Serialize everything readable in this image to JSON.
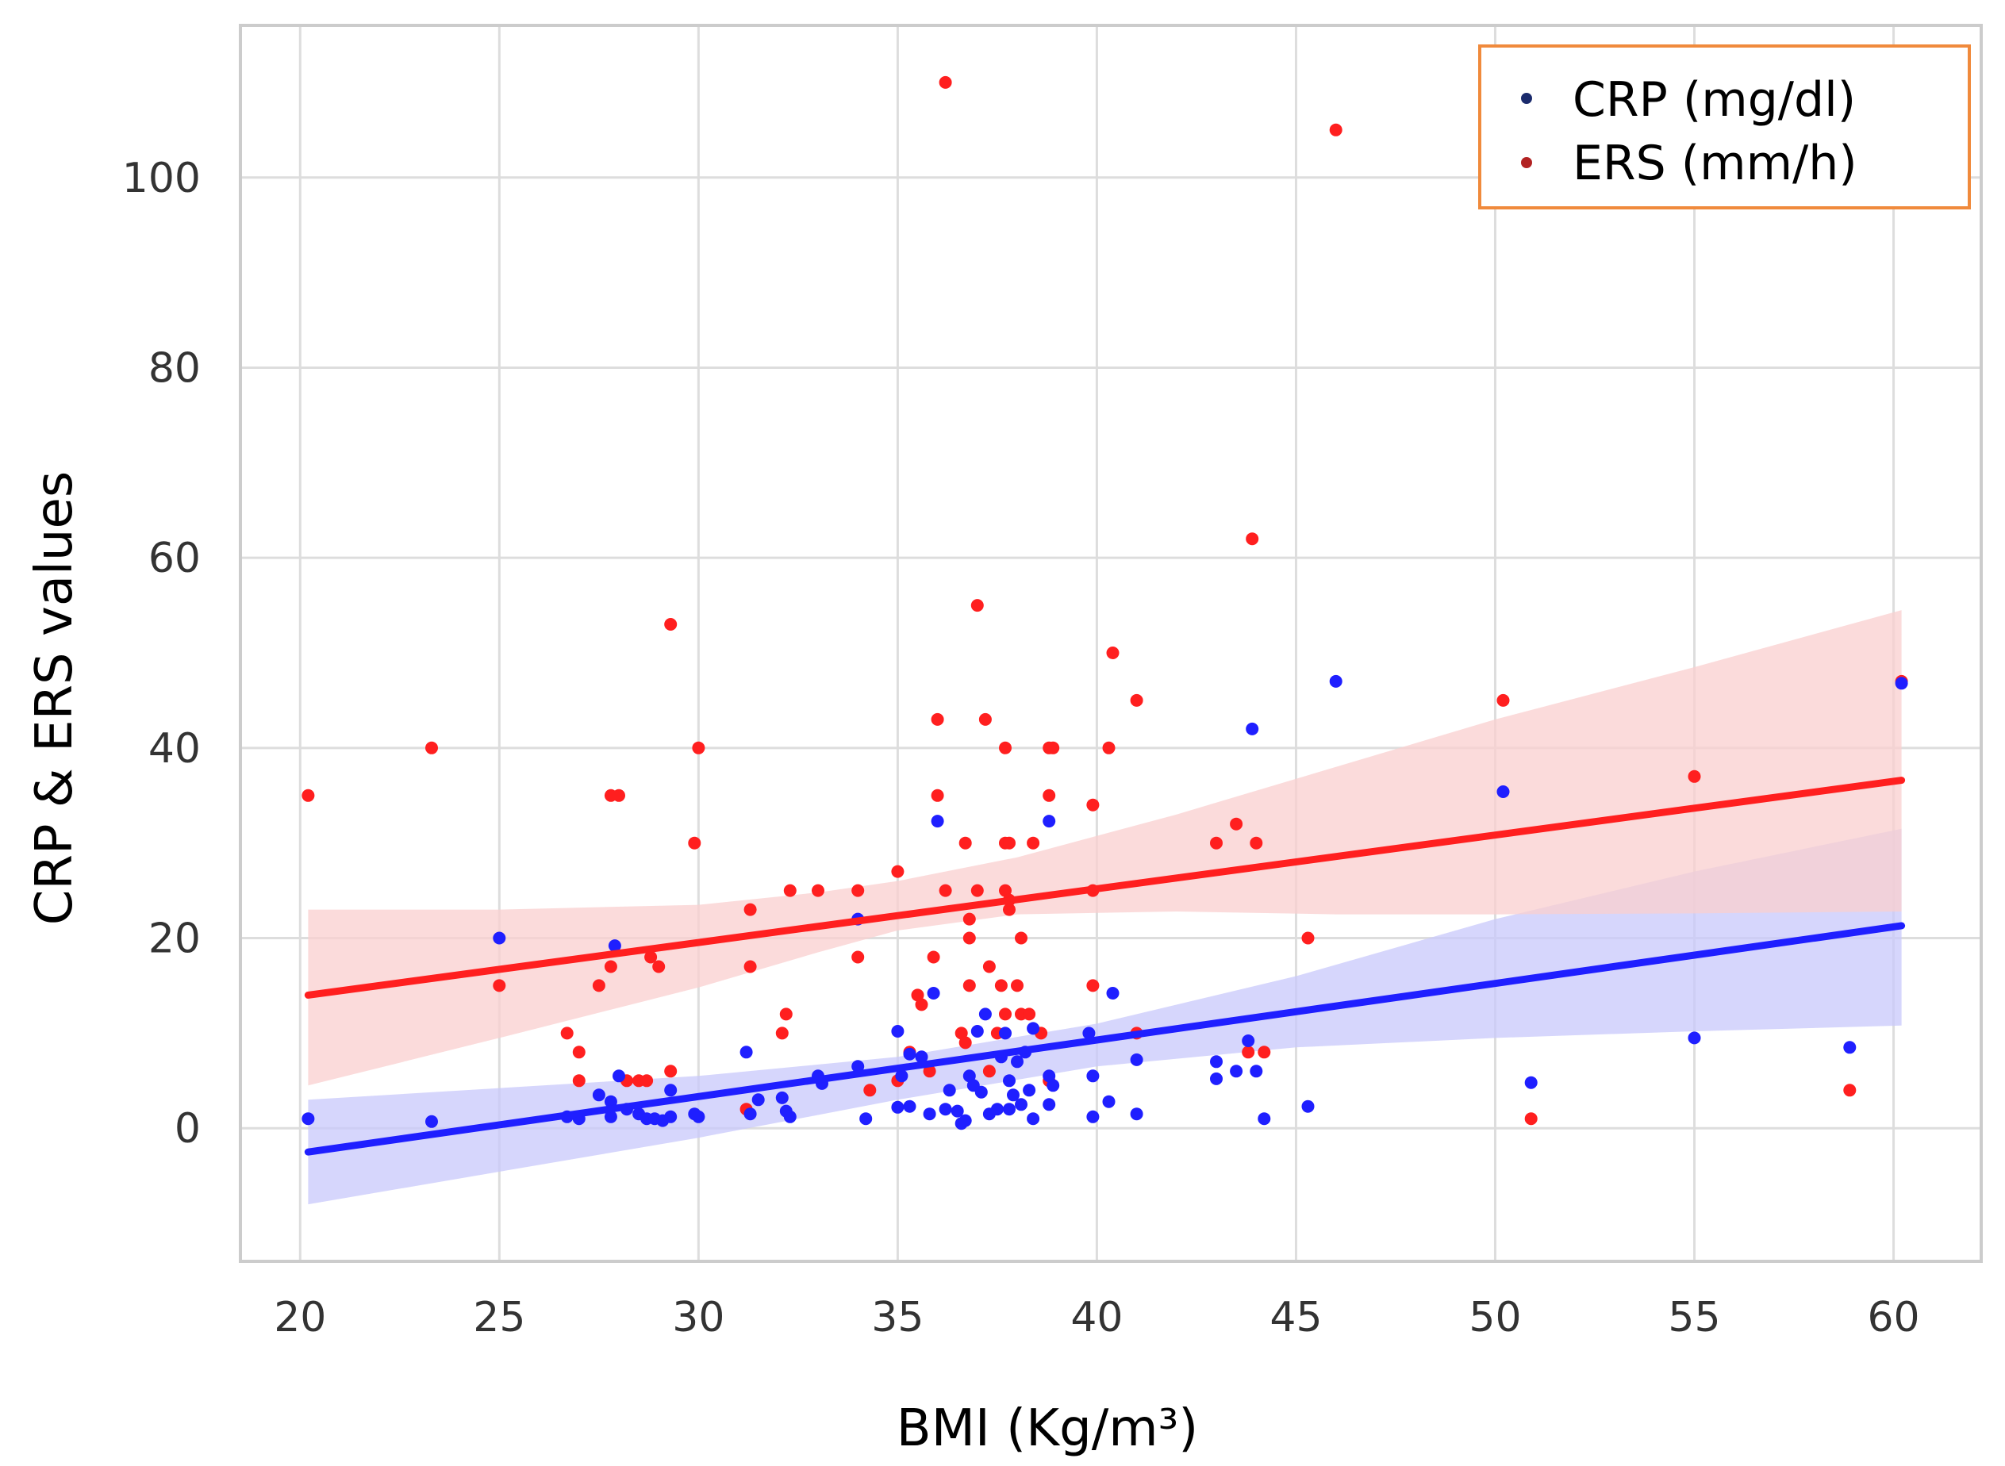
{
  "chart_data": {
    "type": "scatter",
    "xlabel": "BMI (Kg/m³)",
    "ylabel": "CRP & ERS values",
    "xlim": [
      18.5,
      62.2
    ],
    "ylim": [
      -14,
      116
    ],
    "xticks": [
      20,
      25,
      30,
      35,
      40,
      45,
      50,
      55,
      60
    ],
    "yticks": [
      0,
      20,
      40,
      60,
      80,
      100
    ],
    "grid": true,
    "legend_position": "top-right",
    "legend_border_color": "#f08a3c",
    "series": [
      {
        "name": "CRP (mg/dl)",
        "legend_marker_color": "#1a2a6c",
        "color": "#1f1fff",
        "band_color": "#c8c8fb",
        "regression": {
          "x": [
            20.2,
            60.2
          ],
          "y": [
            -2.5,
            21.3
          ]
        },
        "ci_lower": [
          [
            20.2,
            -8
          ],
          [
            30,
            -1
          ],
          [
            35,
            3
          ],
          [
            40,
            6.5
          ],
          [
            45,
            8.5
          ],
          [
            50,
            9.5
          ],
          [
            55,
            10.2
          ],
          [
            60.2,
            10.8
          ]
        ],
        "ci_upper": [
          [
            20.2,
            3
          ],
          [
            30,
            5.5
          ],
          [
            35,
            7.5
          ],
          [
            40,
            11
          ],
          [
            45,
            16
          ],
          [
            50,
            22
          ],
          [
            55,
            27
          ],
          [
            60.2,
            31.5
          ]
        ],
        "points": [
          [
            20.2,
            1
          ],
          [
            23.3,
            0.7
          ],
          [
            25,
            20
          ],
          [
            26.7,
            1.2
          ],
          [
            27,
            1
          ],
          [
            27.5,
            3.5
          ],
          [
            27.8,
            2.8
          ],
          [
            27.8,
            1.2
          ],
          [
            27.9,
            19.2
          ],
          [
            28,
            5.5
          ],
          [
            28.2,
            2
          ],
          [
            28.5,
            1.5
          ],
          [
            28.7,
            1
          ],
          [
            28.9,
            1
          ],
          [
            29.1,
            0.8
          ],
          [
            29.3,
            1.2
          ],
          [
            29.3,
            4
          ],
          [
            29.9,
            1.5
          ],
          [
            30,
            1.2
          ],
          [
            31.2,
            8
          ],
          [
            31.3,
            1.5
          ],
          [
            31.5,
            3
          ],
          [
            32.1,
            3.2
          ],
          [
            32.2,
            1.8
          ],
          [
            32.3,
            1.2
          ],
          [
            33,
            5.5
          ],
          [
            33.1,
            4.7
          ],
          [
            34,
            6.5
          ],
          [
            34,
            22
          ],
          [
            34.2,
            1
          ],
          [
            35,
            10.2
          ],
          [
            35,
            2.2
          ],
          [
            35.1,
            5.5
          ],
          [
            35.3,
            7.8
          ],
          [
            35.3,
            2.3
          ],
          [
            35.6,
            7.5
          ],
          [
            35.8,
            1.5
          ],
          [
            35.9,
            14.2
          ],
          [
            36,
            32.3
          ],
          [
            36.2,
            2
          ],
          [
            36.3,
            4
          ],
          [
            36.5,
            1.8
          ],
          [
            36.6,
            0.5
          ],
          [
            36.7,
            0.8
          ],
          [
            36.8,
            5.5
          ],
          [
            36.9,
            4.5
          ],
          [
            37,
            10.2
          ],
          [
            37.1,
            3.8
          ],
          [
            37.2,
            12
          ],
          [
            37.3,
            1.5
          ],
          [
            37.5,
            2
          ],
          [
            37.6,
            7.5
          ],
          [
            37.7,
            10
          ],
          [
            37.8,
            5
          ],
          [
            37.8,
            2
          ],
          [
            37.9,
            3.5
          ],
          [
            38,
            7
          ],
          [
            38.1,
            2.5
          ],
          [
            38.2,
            8
          ],
          [
            38.3,
            4
          ],
          [
            38.4,
            10.5
          ],
          [
            38.4,
            1
          ],
          [
            38.8,
            32.3
          ],
          [
            38.8,
            2.5
          ],
          [
            38.8,
            5.5
          ],
          [
            38.9,
            4.5
          ],
          [
            39.8,
            10
          ],
          [
            39.9,
            5.5
          ],
          [
            39.9,
            1.2
          ],
          [
            40.3,
            2.8
          ],
          [
            40.4,
            14.2
          ],
          [
            41,
            7.2
          ],
          [
            41,
            1.5
          ],
          [
            43,
            7
          ],
          [
            43,
            5.2
          ],
          [
            43.5,
            6
          ],
          [
            43.8,
            9.2
          ],
          [
            43.9,
            42
          ],
          [
            44,
            6
          ],
          [
            44.2,
            1
          ],
          [
            45.3,
            2.3
          ],
          [
            46,
            47
          ],
          [
            50.2,
            35.4
          ],
          [
            50.9,
            4.8
          ],
          [
            55,
            9.5
          ],
          [
            58.9,
            8.5
          ],
          [
            60.2,
            46.8
          ]
        ]
      },
      {
        "name": "ERS (mm/h)",
        "legend_marker_color": "#b22222",
        "color": "#ff1f1f",
        "band_color": "#f9cfcf",
        "regression": {
          "x": [
            20.2,
            60.2
          ],
          "y": [
            14,
            36.6
          ]
        },
        "ci_lower": [
          [
            20.2,
            4.5
          ],
          [
            25,
            9.5
          ],
          [
            30,
            14.8
          ],
          [
            33,
            18.5
          ],
          [
            35,
            20.8
          ],
          [
            38,
            22.5
          ],
          [
            42,
            22.8
          ],
          [
            46,
            22.5
          ],
          [
            50,
            22.5
          ],
          [
            55,
            22.6
          ],
          [
            60.2,
            22.8
          ]
        ],
        "ci_upper": [
          [
            20.2,
            23
          ],
          [
            25,
            23
          ],
          [
            30,
            23.5
          ],
          [
            33,
            24.8
          ],
          [
            35,
            26
          ],
          [
            38,
            28.5
          ],
          [
            42,
            33
          ],
          [
            46,
            38
          ],
          [
            50,
            43
          ],
          [
            55,
            48.5
          ],
          [
            60.2,
            54.5
          ]
        ],
        "points": [
          [
            20.2,
            35
          ],
          [
            23.3,
            40
          ],
          [
            25,
            15
          ],
          [
            26.7,
            10
          ],
          [
            27,
            8
          ],
          [
            27,
            5
          ],
          [
            27.5,
            15
          ],
          [
            27.8,
            17
          ],
          [
            27.8,
            35
          ],
          [
            28,
            35
          ],
          [
            28.2,
            5
          ],
          [
            28.5,
            5
          ],
          [
            28.7,
            5
          ],
          [
            28.8,
            18
          ],
          [
            29,
            17
          ],
          [
            29.3,
            53
          ],
          [
            29.3,
            6
          ],
          [
            29.9,
            30
          ],
          [
            30,
            40
          ],
          [
            31.2,
            2
          ],
          [
            31.3,
            17
          ],
          [
            31.3,
            23
          ],
          [
            32.1,
            10
          ],
          [
            32.2,
            12
          ],
          [
            32.3,
            25
          ],
          [
            33,
            25
          ],
          [
            34,
            25
          ],
          [
            34,
            18
          ],
          [
            34.3,
            4
          ],
          [
            35,
            27
          ],
          [
            35,
            5
          ],
          [
            35.3,
            8
          ],
          [
            35.5,
            14
          ],
          [
            35.6,
            13
          ],
          [
            35.8,
            6
          ],
          [
            35.9,
            18
          ],
          [
            36,
            35
          ],
          [
            36,
            43
          ],
          [
            36.2,
            25
          ],
          [
            36.2,
            110
          ],
          [
            36.6,
            10
          ],
          [
            36.7,
            9
          ],
          [
            36.7,
            30
          ],
          [
            36.8,
            15
          ],
          [
            36.8,
            22
          ],
          [
            36.8,
            20
          ],
          [
            37,
            55
          ],
          [
            37,
            25
          ],
          [
            37.2,
            43
          ],
          [
            37.3,
            17
          ],
          [
            37.3,
            6
          ],
          [
            37.5,
            10
          ],
          [
            37.6,
            15
          ],
          [
            37.7,
            40
          ],
          [
            37.7,
            30
          ],
          [
            37.7,
            12
          ],
          [
            37.8,
            30
          ],
          [
            37.7,
            25
          ],
          [
            37.8,
            23
          ],
          [
            37.8,
            24
          ],
          [
            38,
            15
          ],
          [
            38.1,
            20
          ],
          [
            38.1,
            12
          ],
          [
            38.3,
            12
          ],
          [
            38.4,
            30
          ],
          [
            38.6,
            10
          ],
          [
            38.8,
            35
          ],
          [
            38.8,
            40
          ],
          [
            38.8,
            5
          ],
          [
            38.9,
            40
          ],
          [
            39.9,
            34
          ],
          [
            39.9,
            25
          ],
          [
            39.9,
            15
          ],
          [
            40.3,
            40
          ],
          [
            40.4,
            50
          ],
          [
            41,
            45
          ],
          [
            41,
            10
          ],
          [
            43,
            30
          ],
          [
            43.5,
            32
          ],
          [
            43.9,
            62
          ],
          [
            44,
            30
          ],
          [
            43.8,
            8
          ],
          [
            44.2,
            8
          ],
          [
            45.3,
            20
          ],
          [
            46,
            105
          ],
          [
            50.2,
            45
          ],
          [
            50.9,
            1
          ],
          [
            55,
            37
          ],
          [
            58.9,
            4
          ],
          [
            60.2,
            47
          ]
        ]
      }
    ]
  }
}
